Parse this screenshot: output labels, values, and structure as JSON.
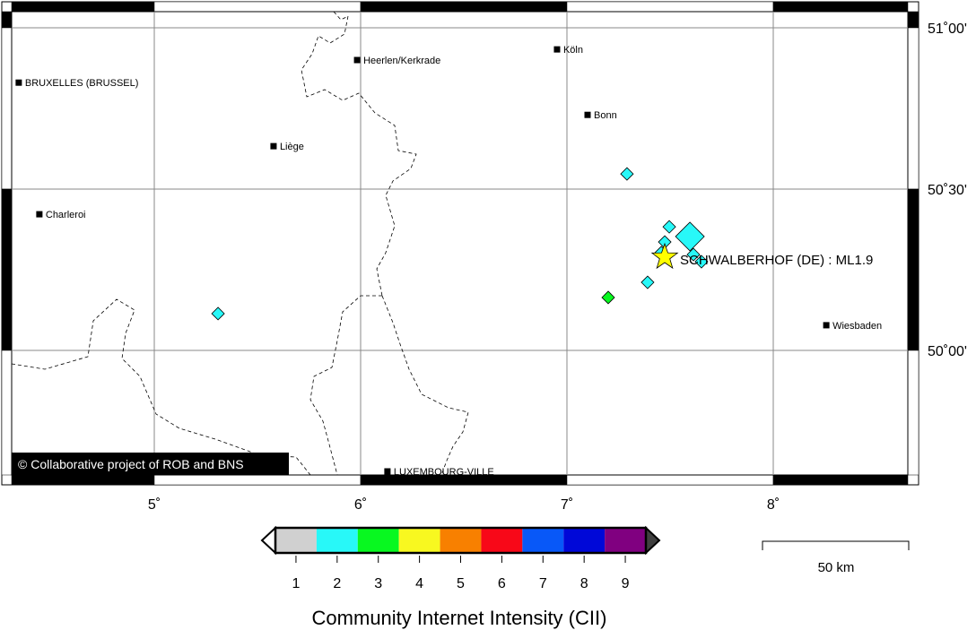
{
  "map": {
    "lon_range": [
      4.3,
      8.7
    ],
    "lat_range": [
      49.6,
      51.05
    ],
    "lon_ticks": [
      {
        "value": 5,
        "label": "5˚"
      },
      {
        "value": 6,
        "label": "6˚"
      },
      {
        "value": 7,
        "label": "7˚"
      },
      {
        "value": 8,
        "label": "8˚"
      }
    ],
    "lat_ticks": [
      {
        "value": 51.0,
        "label": "51˚00'"
      },
      {
        "value": 50.5,
        "label": "50˚30'"
      },
      {
        "value": 50.0,
        "label": "50˚00'"
      }
    ],
    "cities": [
      {
        "name": "BRUXELLES (BRUSSEL)",
        "lon": 4.343,
        "lat": 50.83
      },
      {
        "name": "Heerlen/Kerkrade",
        "lon": 5.983,
        "lat": 50.9
      },
      {
        "name": "Köln",
        "lon": 6.952,
        "lat": 50.933
      },
      {
        "name": "Bonn",
        "lon": 7.1,
        "lat": 50.73
      },
      {
        "name": "Liège",
        "lon": 5.578,
        "lat": 50.633
      },
      {
        "name": "Charleroi",
        "lon": 4.443,
        "lat": 50.422
      },
      {
        "name": "Wiesbaden",
        "lon": 8.257,
        "lat": 50.078
      },
      {
        "name": "LUXEMBOURG-VILLE",
        "lon": 6.13,
        "lat": 49.625
      }
    ],
    "epicenter": {
      "label": "SCHWALBERHOF (DE) : ML1.9",
      "lon": 7.474,
      "lat": 50.289,
      "color": "#ffff00"
    },
    "reports": [
      {
        "lon": 7.291,
        "lat": 50.547,
        "cii": 2,
        "size": "small"
      },
      {
        "lon": 7.496,
        "lat": 50.383,
        "cii": 2,
        "size": "small"
      },
      {
        "lon": 7.596,
        "lat": 50.353,
        "cii": 2,
        "size": "large"
      },
      {
        "lon": 7.474,
        "lat": 50.336,
        "cii": 2,
        "size": "small"
      },
      {
        "lon": 7.457,
        "lat": 50.303,
        "cii": 2,
        "size": "small"
      },
      {
        "lon": 7.613,
        "lat": 50.297,
        "cii": 2,
        "size": "small"
      },
      {
        "lon": 7.652,
        "lat": 50.275,
        "cii": 2,
        "size": "small"
      },
      {
        "lon": 7.391,
        "lat": 50.211,
        "cii": 2,
        "size": "small"
      },
      {
        "lon": 7.2,
        "lat": 50.164,
        "cii": 3,
        "size": "small"
      },
      {
        "lon": 5.309,
        "lat": 50.114,
        "cii": 2,
        "size": "small"
      }
    ],
    "copyright": "© Collaborative project of ROB and BNS",
    "scale_bar": "50 km"
  },
  "legend": {
    "title": "Community Internet Intensity (CII)",
    "classes": [
      {
        "label": "1",
        "color": "#d0d0d0"
      },
      {
        "label": "2",
        "color": "#28f8f8"
      },
      {
        "label": "3",
        "color": "#08f820"
      },
      {
        "label": "4",
        "color": "#f8f820"
      },
      {
        "label": "5",
        "color": "#f88000"
      },
      {
        "label": "6",
        "color": "#f80818"
      },
      {
        "label": "7",
        "color": "#0858f8"
      },
      {
        "label": "8",
        "color": "#0008d8"
      },
      {
        "label": "9",
        "color": "#800080"
      }
    ],
    "below_color": "#ffffff",
    "above_color": "#404040"
  }
}
